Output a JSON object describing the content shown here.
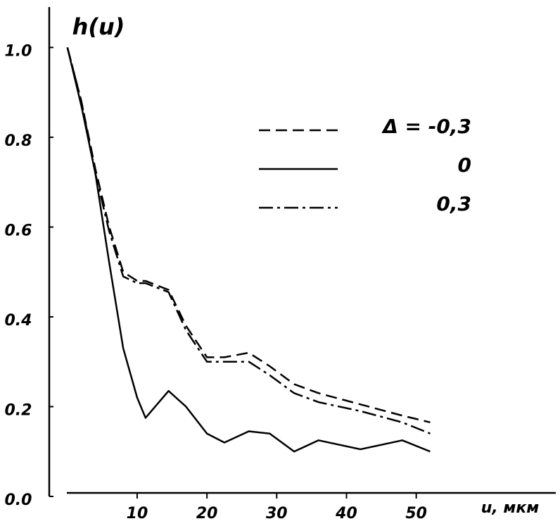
{
  "chart_data": {
    "type": "line",
    "title": "h(u)",
    "x_label": "u, мкм",
    "x": [
      0,
      2,
      4,
      6,
      8,
      10,
      11.2,
      14.5,
      17,
      20,
      22.5,
      26,
      29,
      32.5,
      36,
      42,
      48,
      52
    ],
    "series": [
      {
        "name": "Δ = -0,3",
        "color": "#000000",
        "style": "dashed",
        "values": [
          1.0,
          0.88,
          0.73,
          0.6,
          0.5,
          0.48,
          0.48,
          0.46,
          0.38,
          0.31,
          0.31,
          0.32,
          0.29,
          0.25,
          0.23,
          0.205,
          0.18,
          0.165
        ]
      },
      {
        "name": "0",
        "color": "#000000",
        "style": "solid",
        "values": [
          1.0,
          0.87,
          0.72,
          0.52,
          0.33,
          0.22,
          0.175,
          0.235,
          0.2,
          0.14,
          0.12,
          0.145,
          0.14,
          0.1,
          0.125,
          0.105,
          0.125,
          0.1
        ]
      },
      {
        "name": "0,3",
        "color": "#000000",
        "style": "dashdot",
        "values": [
          1.0,
          0.88,
          0.72,
          0.59,
          0.49,
          0.475,
          0.475,
          0.455,
          0.37,
          0.3,
          0.3,
          0.3,
          0.27,
          0.23,
          0.21,
          0.19,
          0.165,
          0.14
        ]
      }
    ],
    "xlim": [
      -2.4,
      70
    ],
    "xticks": [
      10,
      20,
      30,
      40,
      50
    ],
    "ylim": [
      0,
      1.09
    ],
    "yticks": [
      {
        "value": 0,
        "label": "0.0"
      },
      0.2,
      0.4,
      0.6,
      0.8,
      {
        "value": 1,
        "label": "1.0"
      }
    ],
    "grid": false
  }
}
